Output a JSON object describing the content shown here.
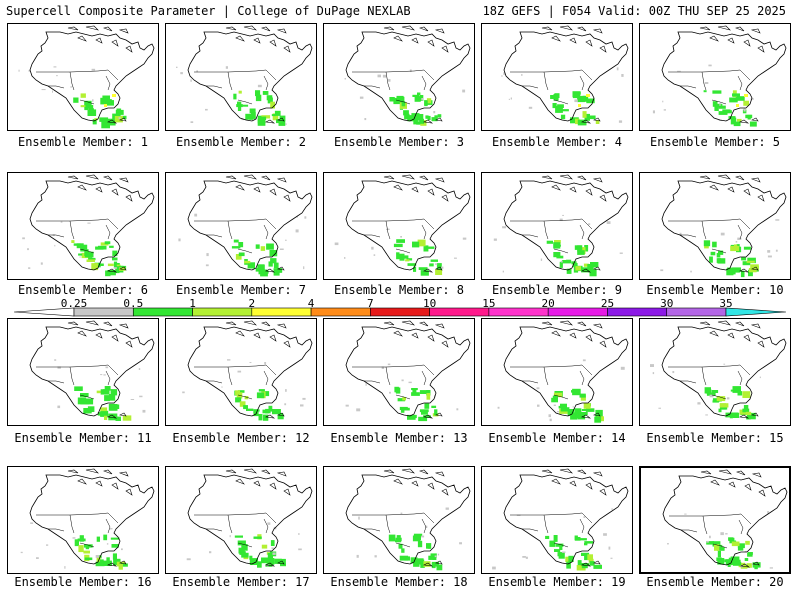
{
  "header": {
    "title_left": "Supercell Composite Parameter | College of DuPage NEXLAB",
    "title_right": "18Z GEFS | F054 Valid: 00Z THU SEP 25 2025"
  },
  "members": [
    {
      "label": "Ensemble Member: 1"
    },
    {
      "label": "Ensemble Member: 2"
    },
    {
      "label": "Ensemble Member: 3"
    },
    {
      "label": "Ensemble Member: 4"
    },
    {
      "label": "Ensemble Member: 5"
    },
    {
      "label": "Ensemble Member: 6"
    },
    {
      "label": "Ensemble Member: 7"
    },
    {
      "label": "Ensemble Member: 8"
    },
    {
      "label": "Ensemble Member: 9"
    },
    {
      "label": "Ensemble Member: 10"
    },
    {
      "label": "Ensemble Member: 11"
    },
    {
      "label": "Ensemble Member: 12"
    },
    {
      "label": "Ensemble Member: 13"
    },
    {
      "label": "Ensemble Member: 14"
    },
    {
      "label": "Ensemble Member: 15"
    },
    {
      "label": "Ensemble Member: 16"
    },
    {
      "label": "Ensemble Member: 17"
    },
    {
      "label": "Ensemble Member: 18"
    },
    {
      "label": "Ensemble Member: 19"
    },
    {
      "label": "Ensemble Member: 20"
    }
  ],
  "colorbar": {
    "ticks": [
      "0.25",
      "0.5",
      "1",
      "2",
      "4",
      "7",
      "10",
      "15",
      "20",
      "25",
      "30",
      "35"
    ],
    "colors": [
      "#c8c8c8",
      "#33e633",
      "#b3f033",
      "#ffff33",
      "#ff8c1a",
      "#e61a1a",
      "#ff1a8c",
      "#ff33cc",
      "#e61ae6",
      "#8c1ae6",
      "#b366e6",
      "#33e6e6"
    ]
  }
}
